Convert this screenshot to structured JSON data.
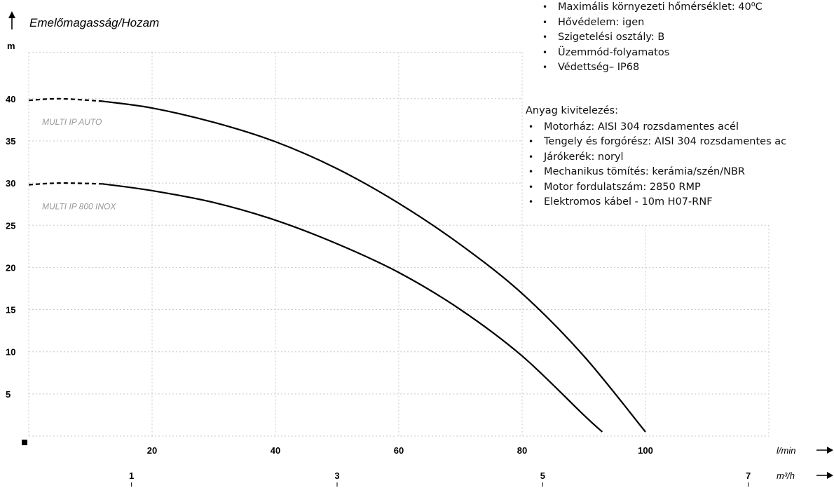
{
  "chart_data": {
    "type": "line",
    "title": "Emelőmagasság/Hozam",
    "y_unit": "m",
    "x_unit": "l/min",
    "x2_unit": "m³/h",
    "ylim": [
      0,
      40
    ],
    "xlim": [
      0,
      120
    ],
    "y_ticks": [
      "5",
      "10",
      "15",
      "20",
      "25",
      "30",
      "35",
      "40"
    ],
    "y_tick_values": [
      5,
      10,
      15,
      20,
      25,
      30,
      35,
      40
    ],
    "x_ticks": [
      "20",
      "40",
      "60",
      "80",
      "100"
    ],
    "x_tick_values": [
      20,
      40,
      60,
      80,
      100
    ],
    "x2_ticks": [
      "1",
      "3",
      "5",
      "7"
    ],
    "x2_tick_values": [
      1,
      3,
      5,
      7
    ],
    "grid": true,
    "series": [
      {
        "name": "MULTI IP AUTO",
        "x": [
          0,
          5,
          12,
          20,
          30,
          40,
          50,
          60,
          70,
          80,
          90,
          100
        ],
        "y": [
          39.8,
          40,
          39.7,
          38.9,
          37.2,
          34.9,
          31.7,
          27.6,
          22.7,
          16.9,
          9.5,
          0.5
        ],
        "dashed_until_x": 12
      },
      {
        "name": "MULTI IP 800 INOX",
        "x": [
          0,
          5,
          12,
          20,
          30,
          40,
          50,
          60,
          70,
          80,
          90,
          93
        ],
        "y": [
          29.8,
          30,
          29.9,
          29.1,
          27.7,
          25.6,
          22.8,
          19.4,
          15.0,
          9.5,
          2.5,
          0.5
        ],
        "dashed_until_x": 12
      }
    ]
  },
  "specs_top": [
    "Maximális környezeti hőmérséklet: 40⁰C",
    "Hővédelem: igen",
    "Szigetelési osztály: B",
    "Üzemmód-folyamatos",
    "Védettség– IP68"
  ],
  "specs_material": {
    "heading": "Anyag kivitelezés:",
    "items": [
      "Motorház: AISI 304 rozsdamentes acél",
      "Tengely és forgórész: AISI 304 rozsdamentes ac",
      "Járókerék: noryl",
      "Mechanikus tömítés: kerámia/szén/NBR",
      "Motor fordulatszám: 2850 RMP",
      "Elektromos kábel - 10m H07-RNF"
    ]
  }
}
